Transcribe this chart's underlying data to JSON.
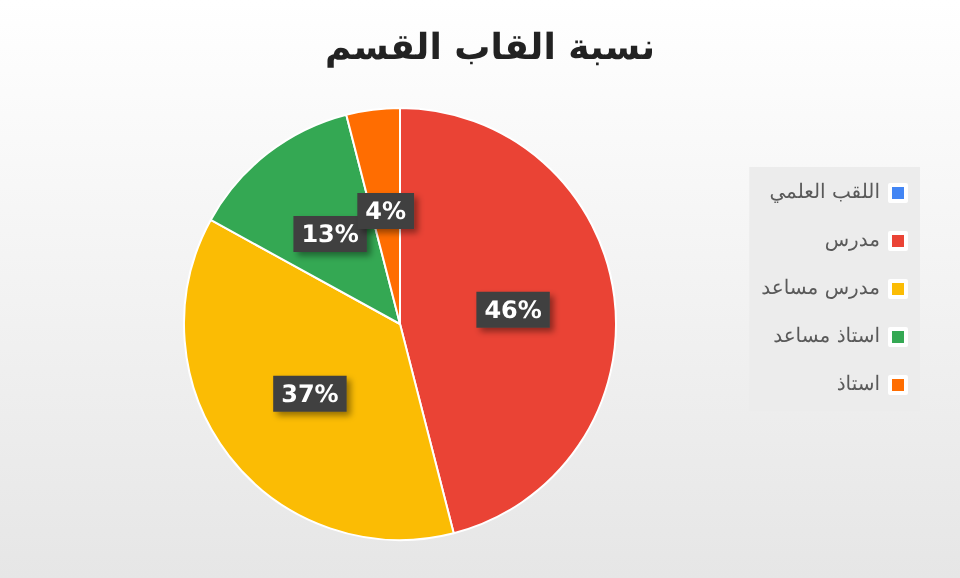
{
  "chart_data": {
    "type": "pie",
    "title": "نسبة القاب القسم",
    "categories": [
      "اللقب العلمي",
      "مدرس",
      "مدرس مساعد",
      "استاذ مساعد",
      "استاذ"
    ],
    "values": [
      null,
      46,
      37,
      13,
      4
    ],
    "colors": [
      "#4285f4",
      "#ea4335",
      "#fbbc04",
      "#34a853",
      "#ff6d01"
    ],
    "value_labels": [
      null,
      "46%",
      "37%",
      "13%",
      "4%"
    ],
    "legend": "right"
  }
}
